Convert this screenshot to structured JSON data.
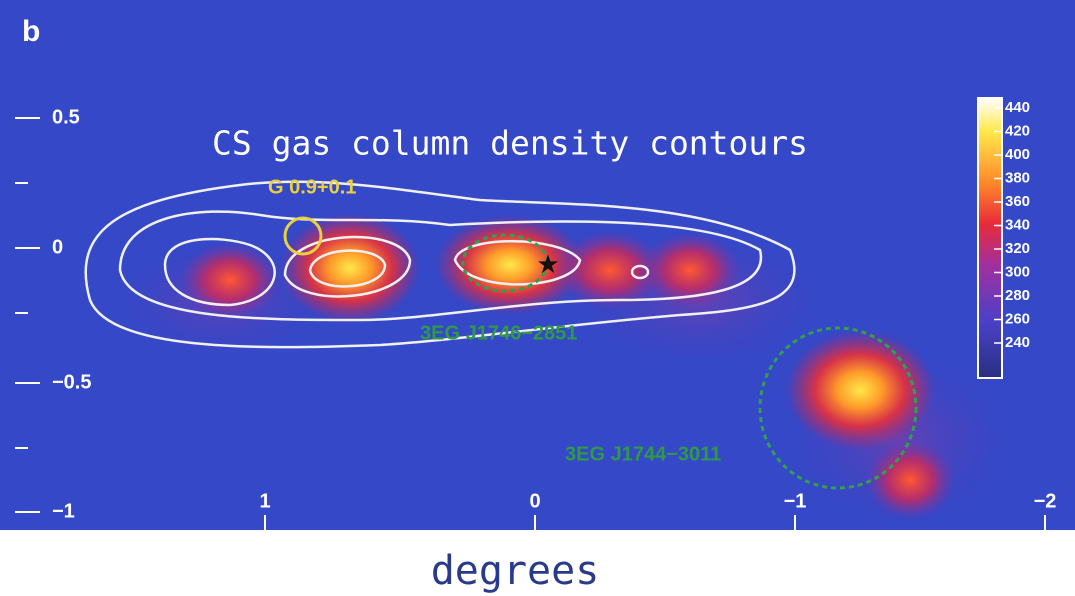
{
  "panel_label": "b",
  "annotations": {
    "contours": "CS gas column density contours",
    "source1": "G 0.9+0.1",
    "source2": "3EG J1746−2851",
    "source3": "3EG J1744−3011"
  },
  "x_axis": {
    "label": "degrees",
    "ticks": [
      "1",
      "0",
      "−1",
      "−2"
    ]
  },
  "y_axis": {
    "ticks": [
      "0.5",
      "0",
      "−0.5",
      "−1"
    ]
  },
  "colorbar": {
    "ticks": [
      "440",
      "420",
      "400",
      "380",
      "360",
      "340",
      "320",
      "300",
      "280",
      "260",
      "240"
    ]
  }
}
